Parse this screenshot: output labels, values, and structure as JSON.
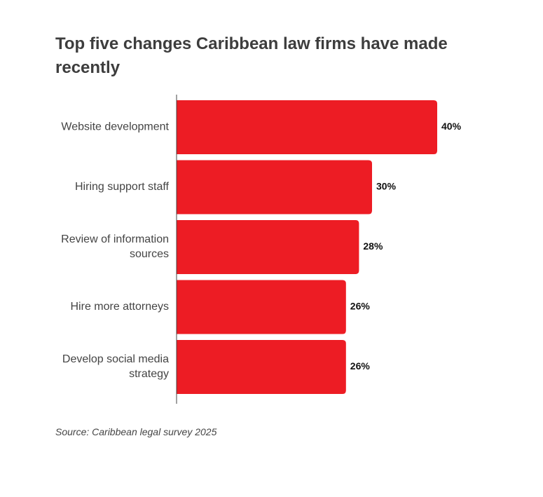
{
  "chart_data": {
    "type": "bar",
    "orientation": "horizontal",
    "title": "Top five changes Caribbean law firms have made recently",
    "categories": [
      [
        "Website development"
      ],
      [
        "Hiring support staff"
      ],
      [
        "Review of information",
        "sources"
      ],
      [
        "Hire more attorneys"
      ],
      [
        "Develop social media",
        "strategy"
      ]
    ],
    "values": [
      40,
      30,
      28,
      26,
      26
    ],
    "value_labels": [
      "40%",
      "30%",
      "28%",
      "26%",
      "26%"
    ],
    "value_unit": "%",
    "xlim": [
      0,
      40
    ],
    "grid": false,
    "legend": "none",
    "bar_color": "#ED1C24",
    "axis_color": "#444444",
    "source": "Source: Caribbean legal survey 2025"
  }
}
